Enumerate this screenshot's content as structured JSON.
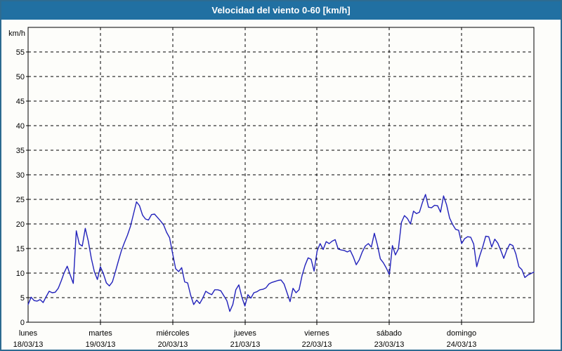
{
  "header": {
    "title": "Velocidad del viento 0-60 [km/h]"
  },
  "chart_data": {
    "type": "line",
    "title": "Velocidad del viento 0-60 [km/h]",
    "ylabel": "km/h",
    "xlabel": "",
    "ylim": [
      0,
      60
    ],
    "ytick_step": 5,
    "ytick_labels": [
      "0",
      "5",
      "10",
      "15",
      "20",
      "25",
      "30",
      "35",
      "40",
      "45",
      "50",
      "55"
    ],
    "grid": true,
    "legend": false,
    "sampling": "hourly values, 7 days, plus end point",
    "days": [
      {
        "name": "lunes",
        "date": "18/03/13"
      },
      {
        "name": "martes",
        "date": "19/03/13"
      },
      {
        "name": "miércoles",
        "date": "20/03/13"
      },
      {
        "name": "jueves",
        "date": "21/03/13"
      },
      {
        "name": "viernes",
        "date": "22/03/13"
      },
      {
        "name": "sábado",
        "date": "23/03/13"
      },
      {
        "name": "domingo",
        "date": "24/03/13"
      }
    ],
    "series": [
      {
        "name": "Velocidad del viento (km/h)",
        "values": [
          3.6,
          5.1,
          4.4,
          4.3,
          4.6,
          4.0,
          5.2,
          6.3,
          6.0,
          6.1,
          6.9,
          8.4,
          10.1,
          11.4,
          9.6,
          7.9,
          18.6,
          15.9,
          15.5,
          19.1,
          16.5,
          13.0,
          10.3,
          8.7,
          11.3,
          9.9,
          8.0,
          7.4,
          8.2,
          10.3,
          12.5,
          14.6,
          16.2,
          17.7,
          19.5,
          22.0,
          24.5,
          23.7,
          21.8,
          21.0,
          20.8,
          21.9,
          22.0,
          21.3,
          20.6,
          19.8,
          18.3,
          17.2,
          14.0,
          10.9,
          10.3,
          11.1,
          8.2,
          8.0,
          5.5,
          3.6,
          4.5,
          3.8,
          4.9,
          6.3,
          5.9,
          5.6,
          6.6,
          6.6,
          6.4,
          5.4,
          4.4,
          2.2,
          3.6,
          6.6,
          7.6,
          5.1,
          3.3,
          5.6,
          4.9,
          6.0,
          6.2,
          6.6,
          6.7,
          7.0,
          7.8,
          8.1,
          8.3,
          8.5,
          8.6,
          7.8,
          6.0,
          4.2,
          6.9,
          6.0,
          6.6,
          9.5,
          11.6,
          13.1,
          12.8,
          10.4,
          14.5,
          16.0,
          14.8,
          16.4,
          16.0,
          16.5,
          16.8,
          14.9,
          14.7,
          14.6,
          14.3,
          14.6,
          13.3,
          11.7,
          12.7,
          14.3,
          15.5,
          16.0,
          15.3,
          18.1,
          15.8,
          12.9,
          12.1,
          11.0,
          9.7,
          15.6,
          13.7,
          14.9,
          20.3,
          21.7,
          21.1,
          20.0,
          22.6,
          22.1,
          22.4,
          24.4,
          26.0,
          23.4,
          23.3,
          23.8,
          23.7,
          22.4,
          25.7,
          23.9,
          21.2,
          19.9,
          18.9,
          18.7,
          16.0,
          17.0,
          17.4,
          17.3,
          15.9,
          11.3,
          13.5,
          15.3,
          17.5,
          17.4,
          15.3,
          16.9,
          16.1,
          14.6,
          13.0,
          14.7,
          15.9,
          15.6,
          13.9,
          11.3,
          10.7,
          9.1,
          9.6,
          9.9,
          10.2
        ]
      }
    ],
    "colors": {
      "line": "#2222bb",
      "header_bg": "#2170a2",
      "header_text": "#ffffff",
      "frame_border": "#2d6b91",
      "background": "#fdfdfa",
      "grid": "#000000"
    }
  }
}
